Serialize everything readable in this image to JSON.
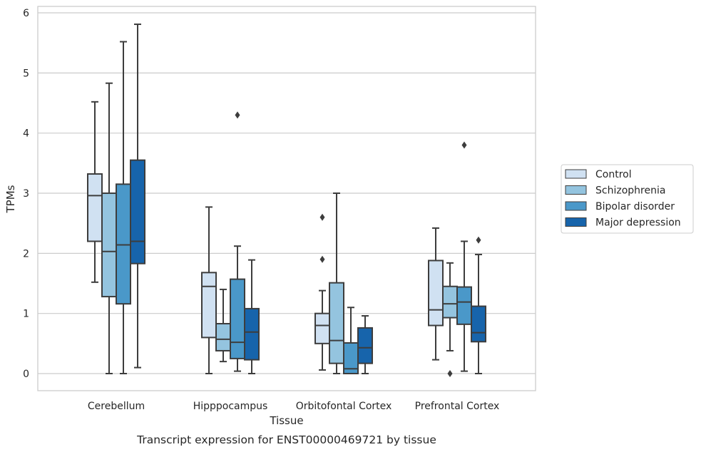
{
  "chart_data": {
    "type": "box",
    "caption": "Transcript expression for ENST00000469721 by tissue",
    "xlabel": "Tissue",
    "ylabel": "TPMs",
    "ylim": [
      -0.28,
      6.1
    ],
    "yticks": [
      0,
      1,
      2,
      3,
      4,
      5,
      6
    ],
    "grid": true,
    "legend_position": "right",
    "categories": [
      "Cerebellum",
      "Hipppocampus",
      "Orbitofontal Cortex",
      "Prefrontal Cortex"
    ],
    "series": [
      {
        "name": "Control",
        "color": "#d0e1f2",
        "boxes": [
          {
            "whislo": 1.52,
            "q1": 2.2,
            "med": 2.96,
            "q3": 3.32,
            "whishi": 4.52,
            "fliers": []
          },
          {
            "whislo": 0.0,
            "q1": 0.6,
            "med": 1.45,
            "q3": 1.68,
            "whishi": 2.77,
            "fliers": []
          },
          {
            "whislo": 0.06,
            "q1": 0.5,
            "med": 0.8,
            "q3": 1.0,
            "whishi": 1.38,
            "fliers": [
              1.9,
              2.6
            ]
          },
          {
            "whislo": 0.23,
            "q1": 0.8,
            "med": 1.06,
            "q3": 1.88,
            "whishi": 2.42,
            "fliers": []
          }
        ]
      },
      {
        "name": "Schizophrenia",
        "color": "#94c4df",
        "boxes": [
          {
            "whislo": 0.0,
            "q1": 1.28,
            "med": 2.03,
            "q3": 3.0,
            "whishi": 4.83,
            "fliers": []
          },
          {
            "whislo": 0.2,
            "q1": 0.38,
            "med": 0.57,
            "q3": 0.83,
            "whishi": 1.4,
            "fliers": []
          },
          {
            "whislo": 0.0,
            "q1": 0.17,
            "med": 0.55,
            "q3": 1.51,
            "whishi": 3.0,
            "fliers": []
          },
          {
            "whislo": 0.38,
            "q1": 0.93,
            "med": 1.16,
            "q3": 1.45,
            "whishi": 1.84,
            "fliers": [
              0.0
            ]
          }
        ]
      },
      {
        "name": "Bipolar disorder",
        "color": "#4a98c9",
        "boxes": [
          {
            "whislo": 0.0,
            "q1": 1.16,
            "med": 2.14,
            "q3": 3.15,
            "whishi": 5.52,
            "fliers": []
          },
          {
            "whislo": 0.04,
            "q1": 0.25,
            "med": 0.52,
            "q3": 1.57,
            "whishi": 2.12,
            "fliers": [
              4.3
            ]
          },
          {
            "whislo": 0.0,
            "q1": 0.0,
            "med": 0.08,
            "q3": 0.51,
            "whishi": 1.1,
            "fliers": []
          },
          {
            "whislo": 0.04,
            "q1": 0.82,
            "med": 1.19,
            "q3": 1.44,
            "whishi": 2.2,
            "fliers": [
              3.8
            ]
          }
        ]
      },
      {
        "name": "Major depression",
        "color": "#1764ab",
        "boxes": [
          {
            "whislo": 0.1,
            "q1": 1.83,
            "med": 2.2,
            "q3": 3.55,
            "whishi": 5.81,
            "fliers": []
          },
          {
            "whislo": 0.0,
            "q1": 0.23,
            "med": 0.69,
            "q3": 1.08,
            "whishi": 1.89,
            "fliers": []
          },
          {
            "whislo": 0.0,
            "q1": 0.17,
            "med": 0.43,
            "q3": 0.76,
            "whishi": 0.96,
            "fliers": []
          },
          {
            "whislo": 0.0,
            "q1": 0.53,
            "med": 0.68,
            "q3": 1.12,
            "whishi": 1.98,
            "fliers": [
              2.22
            ]
          }
        ]
      }
    ]
  }
}
